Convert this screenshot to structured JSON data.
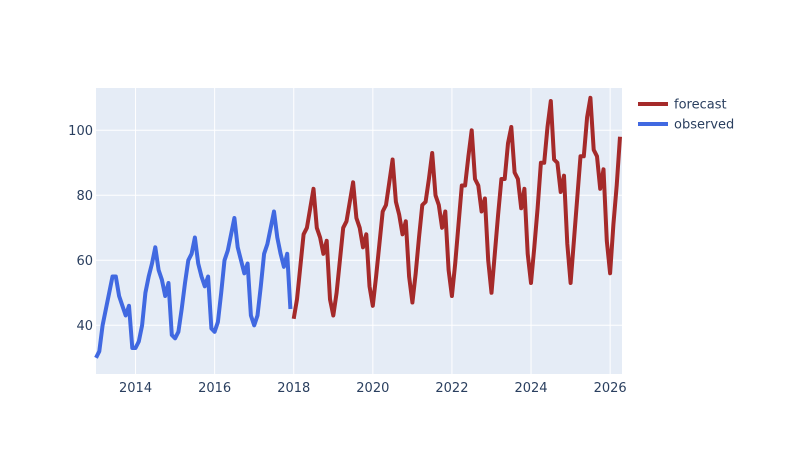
{
  "chart_data": {
    "type": "line",
    "title": "",
    "xlabel": "",
    "ylabel": "",
    "x_range": [
      2013.0,
      2026.3
    ],
    "y_range": [
      25,
      113
    ],
    "grid": true,
    "legend_position": "top-right",
    "x_ticks": [
      {
        "value": 2014,
        "label": "2014"
      },
      {
        "value": 2016,
        "label": "2016"
      },
      {
        "value": 2018,
        "label": "2018"
      },
      {
        "value": 2020,
        "label": "2020"
      },
      {
        "value": 2022,
        "label": "2022"
      },
      {
        "value": 2024,
        "label": "2024"
      },
      {
        "value": 2026,
        "label": "2026"
      }
    ],
    "y_ticks": [
      {
        "value": 40,
        "label": "40"
      },
      {
        "value": 60,
        "label": "60"
      },
      {
        "value": 80,
        "label": "80"
      },
      {
        "value": 100,
        "label": "100"
      }
    ],
    "colors": {
      "plot_background": "#e5ecf6",
      "grid": "#ffffff",
      "forecast": "#a52a2a",
      "observed": "#4169e1"
    },
    "series": [
      {
        "name": "forecast",
        "color": "#a52a2a",
        "x_start": 2018.0,
        "x_step": 0.08333333,
        "values": [
          42,
          48,
          58,
          68,
          70,
          76,
          82,
          70,
          67,
          62,
          66,
          48,
          43,
          50,
          60,
          70,
          72,
          78,
          84,
          73,
          70,
          64,
          68,
          52,
          46,
          55,
          65,
          75,
          77,
          84,
          91,
          78,
          74,
          68,
          72,
          55,
          47,
          56,
          67,
          77,
          78,
          85,
          93,
          80,
          77,
          70,
          75,
          57,
          49,
          59,
          71,
          83,
          83,
          92,
          100,
          85,
          83,
          75,
          79,
          60,
          50,
          62,
          74,
          85,
          85,
          96,
          101,
          87,
          85,
          76,
          82,
          62,
          53,
          64,
          76,
          90,
          90,
          101,
          109,
          91,
          90,
          81,
          86,
          65,
          53,
          66,
          79,
          92,
          92,
          104,
          110,
          94,
          92,
          82,
          88,
          66,
          56,
          71,
          83,
          98
        ]
      },
      {
        "name": "observed",
        "color": "#4169e1",
        "x_start": 2013.0,
        "x_step": 0.08333333,
        "values": [
          30,
          32,
          40,
          45,
          50,
          55,
          55,
          49,
          46,
          43,
          46,
          33,
          33,
          35,
          40,
          50,
          55,
          59,
          64,
          57,
          54,
          49,
          53,
          37,
          36,
          38,
          45,
          53,
          60,
          62,
          67,
          59,
          55,
          52,
          55,
          39,
          38,
          41,
          50,
          60,
          63,
          68,
          73,
          64,
          60,
          56,
          59,
          43,
          40,
          43,
          52,
          62,
          65,
          70,
          75,
          67,
          62,
          58,
          62,
          45
        ]
      }
    ]
  }
}
